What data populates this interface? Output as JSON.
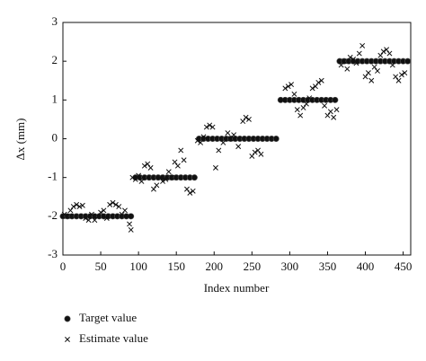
{
  "chart_data": {
    "type": "scatter",
    "x_label": "Index number",
    "y_label": "Δx (mm)",
    "xlim": [
      0,
      460
    ],
    "ylim": [
      -3,
      3
    ],
    "xticks": [
      0,
      50,
      100,
      150,
      200,
      250,
      300,
      350,
      400,
      450
    ],
    "yticks": [
      -3,
      -2,
      -1,
      0,
      1,
      2,
      3
    ],
    "grid": false,
    "series": [
      {
        "name": "Target value",
        "color": "#111111",
        "marker": "circle",
        "x": [
          0,
          6,
          12,
          18,
          24,
          30,
          36,
          42,
          48,
          54,
          60,
          66,
          72,
          78,
          84,
          90,
          96,
          102,
          108,
          114,
          120,
          126,
          132,
          138,
          144,
          150,
          156,
          162,
          168,
          174,
          180,
          186,
          192,
          198,
          204,
          210,
          216,
          222,
          228,
          234,
          240,
          246,
          252,
          258,
          264,
          270,
          276,
          282,
          288,
          294,
          300,
          306,
          312,
          318,
          324,
          330,
          336,
          342,
          348,
          354,
          360,
          366,
          372,
          378,
          384,
          390,
          396,
          402,
          408,
          414,
          420,
          426,
          432,
          438,
          444,
          450,
          456
        ],
        "values": [
          -2,
          -2,
          -2,
          -2,
          -2,
          -2,
          -2,
          -2,
          -2,
          -2,
          -2,
          -2,
          -2,
          -2,
          -2,
          -2,
          -1,
          -1,
          -1,
          -1,
          -1,
          -1,
          -1,
          -1,
          -1,
          -1,
          -1,
          -1,
          -1,
          -1,
          0,
          0,
          0,
          0,
          0,
          0,
          0,
          0,
          0,
          0,
          0,
          0,
          0,
          0,
          0,
          0,
          0,
          0,
          1,
          1,
          1,
          1,
          1,
          1,
          1,
          1,
          1,
          1,
          1,
          1,
          1,
          2,
          2,
          2,
          2,
          2,
          2,
          2,
          2,
          2,
          2,
          2,
          2,
          2,
          2,
          2,
          2
        ]
      },
      {
        "name": "Estimate value",
        "color": "#111111",
        "marker": "x",
        "x": [
          2,
          6,
          10,
          14,
          18,
          22,
          26,
          30,
          34,
          38,
          42,
          46,
          50,
          54,
          58,
          62,
          66,
          70,
          74,
          78,
          82,
          86,
          88,
          90,
          92,
          96,
          100,
          104,
          108,
          112,
          116,
          120,
          124,
          128,
          132,
          136,
          140,
          144,
          148,
          152,
          156,
          160,
          164,
          168,
          172,
          178,
          182,
          186,
          190,
          194,
          198,
          202,
          206,
          212,
          218,
          222,
          226,
          232,
          238,
          242,
          246,
          250,
          254,
          258,
          262,
          290,
          294,
          298,
          302,
          306,
          310,
          314,
          318,
          322,
          326,
          330,
          334,
          338,
          342,
          346,
          350,
          354,
          358,
          362,
          368,
          372,
          376,
          380,
          384,
          388,
          392,
          396,
          400,
          404,
          408,
          412,
          416,
          420,
          424,
          428,
          432,
          436,
          440,
          444,
          448,
          452
        ],
        "values": [
          -1.95,
          -2.0,
          -1.85,
          -1.75,
          -1.7,
          -1.75,
          -1.72,
          -2.05,
          -2.1,
          -1.95,
          -2.1,
          -2.0,
          -1.9,
          -1.85,
          -2.05,
          -1.7,
          -1.65,
          -1.7,
          -1.75,
          -1.95,
          -1.85,
          -2.0,
          -2.2,
          -2.35,
          -1.0,
          -1.05,
          -0.95,
          -1.1,
          -0.7,
          -0.65,
          -0.75,
          -1.3,
          -1.2,
          -1.0,
          -1.1,
          -1.05,
          -0.85,
          -1.0,
          -0.6,
          -0.7,
          -0.3,
          -0.55,
          -1.3,
          -1.4,
          -1.35,
          -0.05,
          -0.1,
          0.05,
          0.3,
          0.35,
          0.3,
          -0.75,
          -0.3,
          -0.1,
          0.15,
          0.0,
          0.1,
          -0.2,
          0.45,
          0.55,
          0.5,
          -0.45,
          -0.35,
          -0.3,
          -0.4,
          1.0,
          1.3,
          1.35,
          1.4,
          1.15,
          0.75,
          0.6,
          0.8,
          0.9,
          1.05,
          1.3,
          1.35,
          1.45,
          1.5,
          0.85,
          0.6,
          0.7,
          0.55,
          0.75,
          1.9,
          2.0,
          1.8,
          2.1,
          2.05,
          1.95,
          2.2,
          2.4,
          1.6,
          1.7,
          1.5,
          1.85,
          1.75,
          2.15,
          2.25,
          2.3,
          2.2,
          1.9,
          1.6,
          1.5,
          1.65,
          1.7
        ]
      }
    ]
  }
}
